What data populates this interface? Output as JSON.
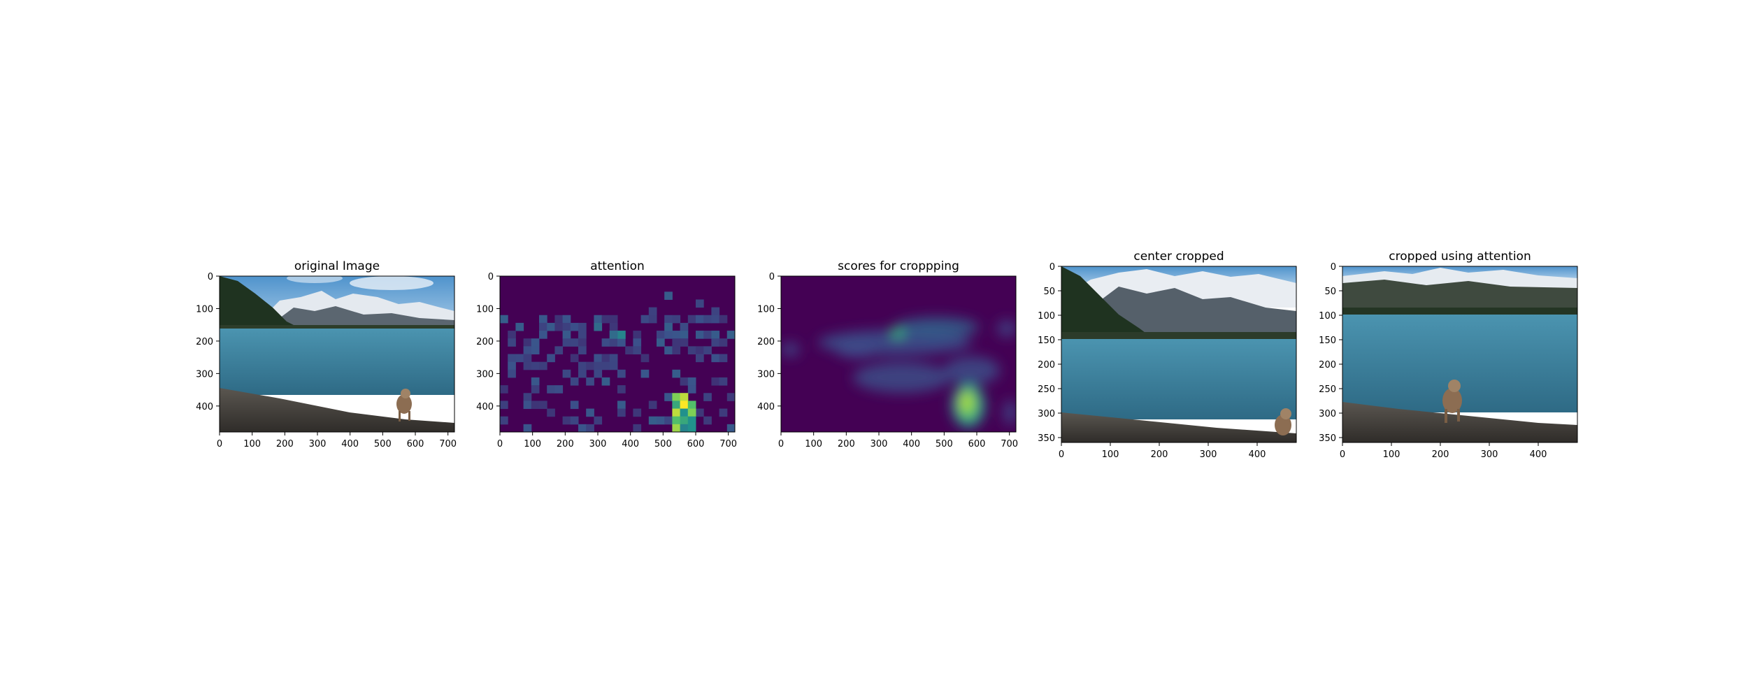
{
  "chart_data": [
    {
      "type": "image",
      "title": "original Image",
      "xlim": [
        0,
        720
      ],
      "ylim": [
        480,
        0
      ],
      "xticks": [
        0,
        100,
        200,
        300,
        400,
        500,
        600,
        700
      ],
      "yticks": [
        0,
        100,
        200,
        300,
        400
      ],
      "content": "photo"
    },
    {
      "type": "heatmap",
      "title": "attention",
      "xlim": [
        0,
        720
      ],
      "ylim": [
        480,
        0
      ],
      "xticks": [
        0,
        100,
        200,
        300,
        400,
        500,
        600,
        700
      ],
      "yticks": [
        0,
        100,
        200,
        300,
        400
      ],
      "colormap": "viridis",
      "grid_size": [
        30,
        20
      ],
      "background_value": 0,
      "hot_cells": [
        {
          "col": 22,
          "row": 15,
          "value": 0.8
        },
        {
          "col": 23,
          "row": 15,
          "value": 0.9
        },
        {
          "col": 22,
          "row": 16,
          "value": 0.6
        },
        {
          "col": 23,
          "row": 16,
          "value": 1.0
        },
        {
          "col": 24,
          "row": 16,
          "value": 0.7
        },
        {
          "col": 22,
          "row": 17,
          "value": 0.9
        },
        {
          "col": 23,
          "row": 17,
          "value": 0.5
        },
        {
          "col": 24,
          "row": 17,
          "value": 0.8
        },
        {
          "col": 22,
          "row": 18,
          "value": 0.7
        },
        {
          "col": 23,
          "row": 18,
          "value": 0.6
        },
        {
          "col": 24,
          "row": 18,
          "value": 0.5
        },
        {
          "col": 22,
          "row": 19,
          "value": 0.85
        },
        {
          "col": 23,
          "row": 19,
          "value": 0.45
        },
        {
          "col": 24,
          "row": 19,
          "value": 0.5
        },
        {
          "col": 15,
          "row": 7,
          "value": 0.45
        },
        {
          "col": 14,
          "row": 7,
          "value": 0.35
        },
        {
          "col": 12,
          "row": 6,
          "value": 0.35
        },
        {
          "col": 21,
          "row": 6,
          "value": 0.3
        },
        {
          "col": 29,
          "row": 7,
          "value": 0.3
        }
      ]
    },
    {
      "type": "heatmap",
      "title": "scores for croppping",
      "xlim": [
        0,
        720
      ],
      "ylim": [
        480,
        0
      ],
      "xticks": [
        0,
        100,
        200,
        300,
        400,
        500,
        600,
        700
      ],
      "yticks": [
        0,
        100,
        200,
        300,
        400
      ],
      "colormap": "viridis",
      "smoothed": true
    },
    {
      "type": "image",
      "title": "center cropped",
      "xlim": [
        0,
        480
      ],
      "ylim": [
        360,
        0
      ],
      "xticks": [
        0,
        100,
        200,
        300,
        400
      ],
      "yticks": [
        0,
        50,
        100,
        150,
        200,
        250,
        300,
        350
      ],
      "content": "photo"
    },
    {
      "type": "image",
      "title": "cropped using attention",
      "xlim": [
        0,
        480
      ],
      "ylim": [
        360,
        0
      ],
      "xticks": [
        0,
        100,
        200,
        300,
        400
      ],
      "yticks": [
        0,
        50,
        100,
        150,
        200,
        250,
        300,
        350
      ],
      "content": "photo"
    }
  ],
  "colors": {
    "viridis_low": "#440154",
    "viridis_mid": "#21918c",
    "viridis_high": "#fde725",
    "sky": "#6aa6d8",
    "snow": "#eef2f6",
    "forest": "#1f3320",
    "lake": "#3d7f99",
    "beach": "#4b4741"
  }
}
